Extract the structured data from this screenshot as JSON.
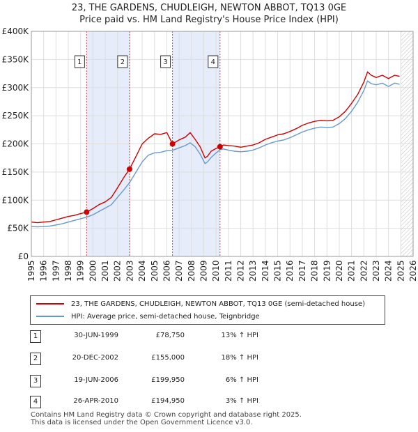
{
  "header": {
    "title_line1": "23, THE GARDENS, CHUDLEIGH, NEWTON ABBOT, TQ13 0GE",
    "title_line2": "Price paid vs. HM Land Registry's House Price Index (HPI)"
  },
  "colors": {
    "property": "#cc0000",
    "hpi": "#6699cc",
    "shade": "#e6ecfa",
    "grid": "#dddddd",
    "sale_line": "#dd4444"
  },
  "legend": {
    "property_label": "23, THE GARDENS, CHUDLEIGH, NEWTON ABBOT, TQ13 0GE (semi-detached house)",
    "hpi_label": "HPI: Average price, semi-detached house, Teignbridge"
  },
  "sales": [
    {
      "num": "1",
      "date": "30-JUN-1999",
      "price": "£78,750",
      "hpi": "13% ↑ HPI"
    },
    {
      "num": "2",
      "date": "20-DEC-2002",
      "price": "£155,000",
      "hpi": "18% ↑ HPI"
    },
    {
      "num": "3",
      "date": "19-JUN-2006",
      "price": "£199,950",
      "hpi": "6% ↑ HPI"
    },
    {
      "num": "4",
      "date": "26-APR-2010",
      "price": "£194,950",
      "hpi": "3% ↑ HPI"
    }
  ],
  "footer": {
    "line1": "Contains HM Land Registry data © Crown copyright and database right 2025.",
    "line2": "This data is licensed under the Open Government Licence v3.0."
  },
  "chart_data": {
    "type": "line",
    "title": "23, THE GARDENS, CHUDLEIGH, NEWTON ABBOT, TQ13 0GE",
    "subtitle": "Price paid vs. HM Land Registry's House Price Index (HPI)",
    "xlim": [
      1995,
      2026
    ],
    "ylim": [
      0,
      400000
    ],
    "x_ticks": [
      1995,
      1996,
      1997,
      1998,
      1999,
      2000,
      2001,
      2002,
      2003,
      2004,
      2005,
      2006,
      2007,
      2008,
      2009,
      2010,
      2011,
      2012,
      2013,
      2014,
      2015,
      2016,
      2017,
      2018,
      2019,
      2020,
      2021,
      2022,
      2023,
      2024,
      2025,
      2026
    ],
    "y_ticks": [
      0,
      50000,
      100000,
      150000,
      200000,
      250000,
      300000,
      350000,
      400000
    ],
    "y_tick_labels": [
      "£0",
      "£50K",
      "£100K",
      "£150K",
      "£200K",
      "£250K",
      "£300K",
      "£350K",
      "£400K"
    ],
    "shaded_ranges": [
      [
        1999.49,
        2002.97
      ],
      [
        2006.46,
        2010.32
      ]
    ],
    "forecast_from": 2025.0,
    "series": [
      {
        "name": "23, THE GARDENS, CHUDLEIGH, NEWTON ABBOT, TQ13 0GE (semi-detached house)",
        "x": [
          1995.0,
          1995.5,
          1996.0,
          1996.5,
          1997.0,
          1997.5,
          1998.0,
          1998.5,
          1999.0,
          1999.49,
          2000.0,
          2000.5,
          2001.0,
          2001.5,
          2002.0,
          2002.5,
          2002.97,
          2003.5,
          2004.0,
          2004.5,
          2005.0,
          2005.5,
          2006.0,
          2006.46,
          2007.0,
          2007.5,
          2007.9,
          2008.3,
          2008.7,
          2009.1,
          2009.3,
          2009.6,
          2010.0,
          2010.32,
          2010.6,
          2011.0,
          2011.5,
          2012.0,
          2012.5,
          2013.0,
          2013.5,
          2014.0,
          2014.5,
          2015.0,
          2015.5,
          2016.0,
          2016.5,
          2017.0,
          2017.5,
          2018.0,
          2018.5,
          2019.0,
          2019.5,
          2020.0,
          2020.5,
          2021.0,
          2021.5,
          2022.0,
          2022.3,
          2022.6,
          2023.0,
          2023.5,
          2024.0,
          2024.5,
          2024.9
        ],
        "values": [
          61000,
          60000,
          61000,
          62000,
          65000,
          68000,
          71000,
          73000,
          76000,
          78750,
          85000,
          92000,
          97000,
          105000,
          122000,
          140000,
          155000,
          178000,
          200000,
          210000,
          218000,
          217000,
          220000,
          199950,
          207000,
          212000,
          220000,
          208000,
          195000,
          175000,
          178000,
          187000,
          192000,
          194950,
          198000,
          197000,
          196000,
          194000,
          196000,
          198000,
          202000,
          208000,
          212000,
          216000,
          218000,
          222000,
          227000,
          233000,
          237000,
          240000,
          242000,
          241000,
          242000,
          248000,
          258000,
          272000,
          288000,
          310000,
          328000,
          322000,
          318000,
          322000,
          316000,
          322000,
          320000
        ]
      },
      {
        "name": "HPI: Average price, semi-detached house, Teignbridge",
        "x": [
          1995.0,
          1995.5,
          1996.0,
          1996.5,
          1997.0,
          1997.5,
          1998.0,
          1998.5,
          1999.0,
          1999.49,
          2000.0,
          2000.5,
          2001.0,
          2001.5,
          2002.0,
          2002.5,
          2002.97,
          2003.5,
          2004.0,
          2004.5,
          2005.0,
          2005.5,
          2006.0,
          2006.46,
          2007.0,
          2007.5,
          2007.9,
          2008.3,
          2008.7,
          2009.1,
          2009.3,
          2009.6,
          2010.0,
          2010.32,
          2010.6,
          2011.0,
          2011.5,
          2012.0,
          2012.5,
          2013.0,
          2013.5,
          2014.0,
          2014.5,
          2015.0,
          2015.5,
          2016.0,
          2016.5,
          2017.0,
          2017.5,
          2018.0,
          2018.5,
          2019.0,
          2019.5,
          2020.0,
          2020.5,
          2021.0,
          2021.5,
          2022.0,
          2022.3,
          2022.6,
          2023.0,
          2023.5,
          2024.0,
          2024.5,
          2024.9
        ],
        "values": [
          53000,
          52500,
          53000,
          54000,
          56000,
          58000,
          61000,
          64000,
          67000,
          69700,
          74000,
          80000,
          86000,
          92000,
          105000,
          118000,
          131000,
          150000,
          168000,
          180000,
          184000,
          185000,
          188000,
          188600,
          193000,
          197000,
          202000,
          195000,
          182000,
          165000,
          168000,
          176000,
          184000,
          189300,
          191000,
          189000,
          187000,
          186000,
          187000,
          189000,
          193000,
          198000,
          202000,
          205000,
          207000,
          211000,
          216000,
          221000,
          225000,
          228000,
          230000,
          229000,
          230000,
          236000,
          245000,
          258000,
          274000,
          295000,
          312000,
          307000,
          305000,
          308000,
          302000,
          308000,
          306000
        ]
      }
    ],
    "sales_points": [
      {
        "label": "1",
        "x": 1999.49,
        "y": 78750
      },
      {
        "label": "2",
        "x": 2002.97,
        "y": 155000
      },
      {
        "label": "3",
        "x": 2006.46,
        "y": 199950
      },
      {
        "label": "4",
        "x": 2010.32,
        "y": 194950
      }
    ]
  }
}
